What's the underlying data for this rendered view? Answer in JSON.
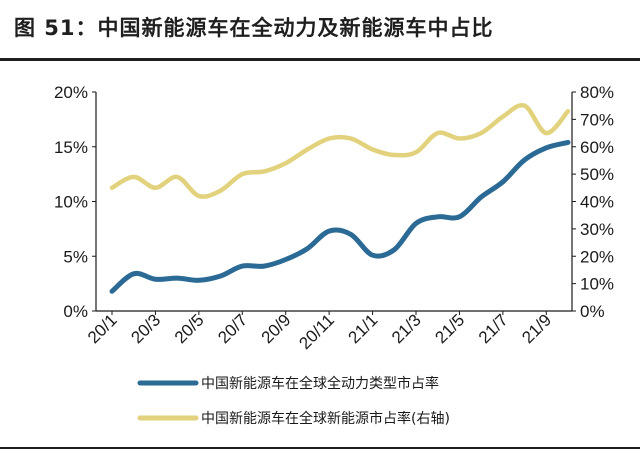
{
  "title": "图 51：中国新能源车在全动力及新能源车中占比",
  "colors": {
    "series1": "#2c6a96",
    "series2": "#e3d27d",
    "axis": "#1a1a1a",
    "rule": "#1f1f1f"
  },
  "chart_data": {
    "type": "line",
    "x": [
      "20/1",
      "20/2",
      "20/3",
      "20/4",
      "20/5",
      "20/6",
      "20/7",
      "20/8",
      "20/9",
      "20/10",
      "20/11",
      "20/12",
      "21/1",
      "21/2",
      "21/3",
      "21/4",
      "21/5",
      "21/6",
      "21/7",
      "21/8",
      "21/9",
      "21/10"
    ],
    "x_tick_labels": [
      "20/1",
      "20/3",
      "20/5",
      "20/7",
      "20/9",
      "20/11",
      "21/1",
      "21/3",
      "21/5",
      "21/7",
      "21/9"
    ],
    "y_left": {
      "ticks": [
        "0%",
        "5%",
        "10%",
        "15%",
        "20%"
      ],
      "lim": [
        0,
        20
      ],
      "unit": "%"
    },
    "y_right": {
      "ticks": [
        "0%",
        "10%",
        "20%",
        "30%",
        "40%",
        "50%",
        "60%",
        "70%",
        "80%"
      ],
      "lim": [
        0,
        80
      ],
      "unit": "%"
    },
    "series": [
      {
        "name": "中国新能源车在全球全动力类型市占率",
        "axis": "left",
        "values": [
          1.8,
          3.4,
          2.9,
          3.0,
          2.8,
          3.2,
          4.1,
          4.1,
          4.7,
          5.7,
          7.3,
          7.0,
          5.1,
          5.6,
          8.0,
          8.6,
          8.6,
          10.4,
          11.8,
          13.8,
          14.9,
          15.4
        ]
      },
      {
        "name": "中国新能源车在全球新能源市占率(右轴)",
        "axis": "right",
        "values": [
          45,
          49,
          45,
          49,
          42,
          44,
          50,
          51,
          54,
          59,
          63,
          63,
          59,
          57,
          58,
          65,
          63,
          65,
          71,
          75,
          65,
          73
        ]
      }
    ],
    "legend_position": "bottom-center",
    "grid": false
  }
}
